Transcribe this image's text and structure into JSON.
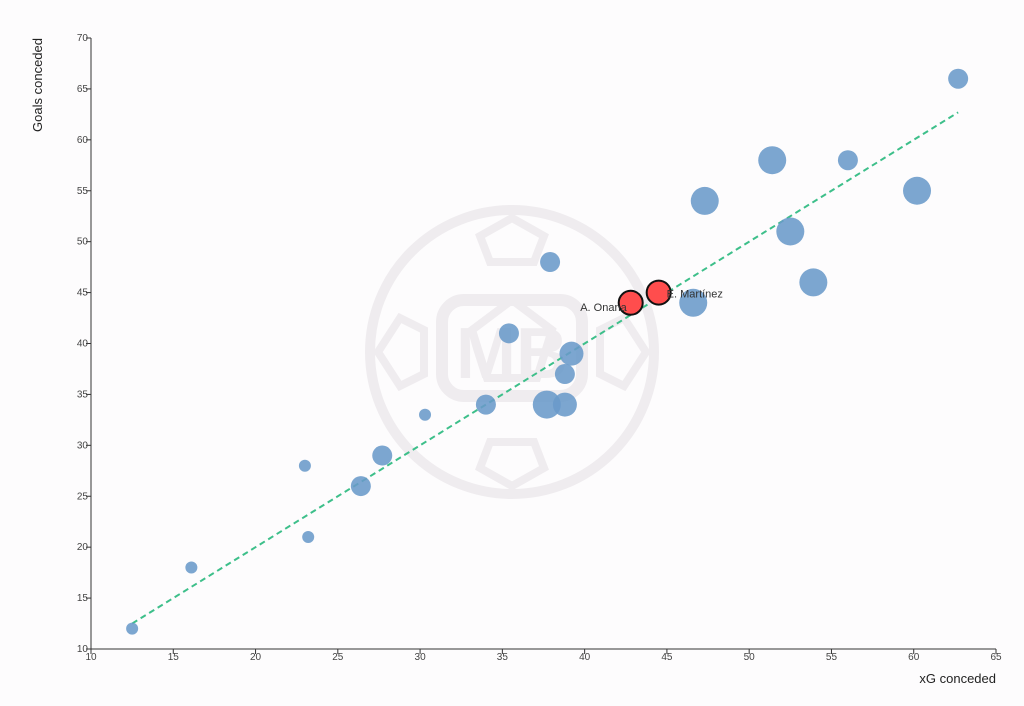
{
  "colors": {
    "background": "#fdfcfd",
    "point": "#6a9ac9",
    "highlight": "#ff4d4d",
    "highlight_stroke": "#111111",
    "trendline": "#3dbf8a",
    "axis": "#333333",
    "watermark": "#efecef"
  },
  "watermark": {
    "text": "MB"
  },
  "chart_data": {
    "type": "scatter",
    "title": "",
    "xlabel": "xG conceded",
    "ylabel": "Goals conceded",
    "xlim": [
      10,
      65
    ],
    "ylim": [
      10,
      70
    ],
    "xticks": [
      10,
      15,
      20,
      25,
      30,
      35,
      40,
      45,
      50,
      55,
      60,
      65
    ],
    "yticks": [
      10,
      15,
      20,
      25,
      30,
      35,
      40,
      45,
      50,
      55,
      60,
      65,
      70
    ],
    "grid": false,
    "trendline": {
      "style": "dashed",
      "x": [
        12.5,
        62.7
      ],
      "y": [
        12.5,
        62.7
      ]
    },
    "points": [
      {
        "x": 12.5,
        "y": 12,
        "size": "small",
        "label": "",
        "highlight": false
      },
      {
        "x": 16.1,
        "y": 18,
        "size": "small",
        "label": "",
        "highlight": false
      },
      {
        "x": 23.0,
        "y": 28,
        "size": "small",
        "label": "",
        "highlight": false
      },
      {
        "x": 23.2,
        "y": 21,
        "size": "small",
        "label": "",
        "highlight": false
      },
      {
        "x": 26.4,
        "y": 26,
        "size": "medium",
        "label": "",
        "highlight": false
      },
      {
        "x": 27.7,
        "y": 29,
        "size": "medium",
        "label": "",
        "highlight": false
      },
      {
        "x": 30.3,
        "y": 33,
        "size": "small",
        "label": "",
        "highlight": false
      },
      {
        "x": 34.0,
        "y": 34,
        "size": "medium",
        "label": "",
        "highlight": false
      },
      {
        "x": 35.4,
        "y": 41,
        "size": "medium",
        "label": "",
        "highlight": false
      },
      {
        "x": 37.7,
        "y": 34,
        "size": "large",
        "label": "",
        "highlight": false
      },
      {
        "x": 37.9,
        "y": 48,
        "size": "medium",
        "label": "",
        "highlight": false
      },
      {
        "x": 38.8,
        "y": 37,
        "size": "medium",
        "label": "",
        "highlight": false
      },
      {
        "x": 38.8,
        "y": 34,
        "size": "medium-large",
        "label": "",
        "highlight": false
      },
      {
        "x": 39.2,
        "y": 39,
        "size": "medium-large",
        "label": "",
        "highlight": false
      },
      {
        "x": 42.8,
        "y": 44,
        "size": "highlight",
        "label": "A. Onana",
        "label_side": "left",
        "highlight": true
      },
      {
        "x": 44.5,
        "y": 45,
        "size": "highlight",
        "label": "E. Martínez",
        "label_side": "right",
        "highlight": true
      },
      {
        "x": 46.6,
        "y": 44,
        "size": "large",
        "label": "",
        "highlight": false
      },
      {
        "x": 47.3,
        "y": 54,
        "size": "large",
        "label": "",
        "highlight": false
      },
      {
        "x": 51.4,
        "y": 58,
        "size": "large",
        "label": "",
        "highlight": false
      },
      {
        "x": 52.5,
        "y": 51,
        "size": "large",
        "label": "",
        "highlight": false
      },
      {
        "x": 53.9,
        "y": 46,
        "size": "large",
        "label": "",
        "highlight": false
      },
      {
        "x": 56.0,
        "y": 58,
        "size": "medium",
        "label": "",
        "highlight": false
      },
      {
        "x": 60.2,
        "y": 55,
        "size": "large",
        "label": "",
        "highlight": false
      },
      {
        "x": 62.7,
        "y": 66,
        "size": "medium",
        "label": "",
        "highlight": false
      }
    ]
  }
}
